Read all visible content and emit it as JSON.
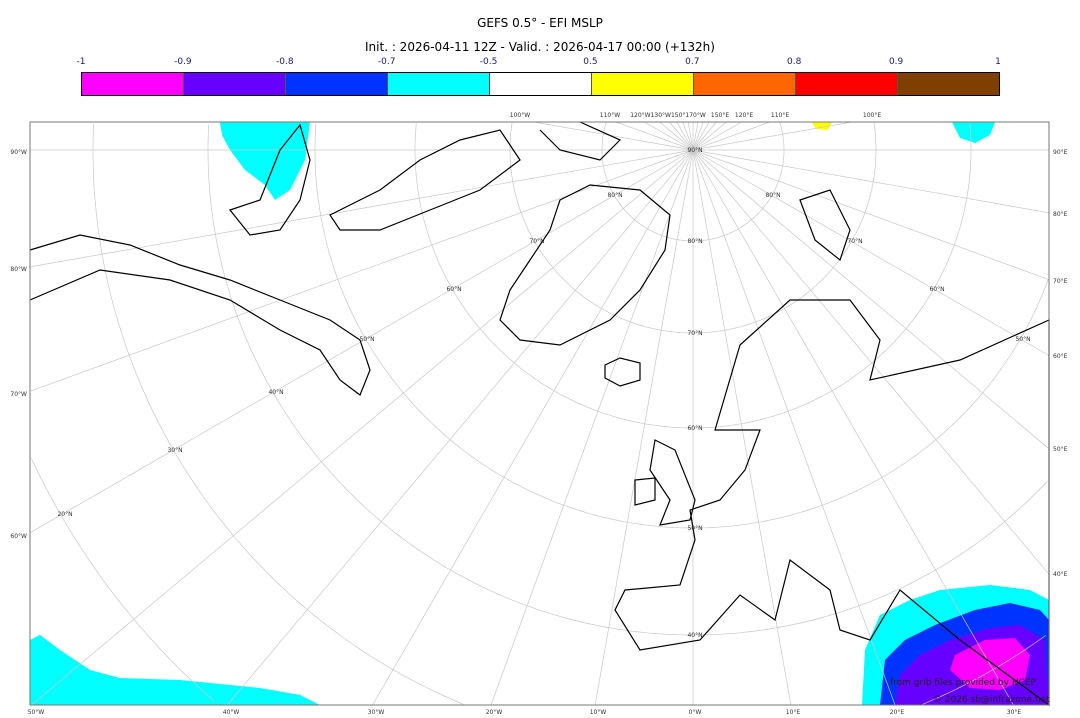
{
  "title": "GEFS 0.5° - EFI MSLP",
  "subtitle": "Init. : 2026-04-11 12Z - Valid. : 2026-04-17 00:00 (+132h)",
  "colorbar": {
    "ticks": [
      "-1",
      "-0.9",
      "-0.8",
      "-0.7",
      "-0.5",
      "0.5",
      "0.7",
      "0.8",
      "0.9",
      "1"
    ],
    "colors": [
      "#ff00ff",
      "#6600ff",
      "#0033ff",
      "#00ffff",
      "#ffffff",
      "#ffff00",
      "#ff6600",
      "#ff0000",
      "#7f3f00"
    ]
  },
  "map": {
    "projection": "polar stereographic",
    "graticule": true,
    "left_labels": [
      "90°W",
      "80°W",
      "70°W",
      "60°W"
    ],
    "right_labels": [
      "90°E",
      "80°E",
      "70°E",
      "60°E",
      "50°E",
      "40°E"
    ],
    "bottom_labels": [
      "50°W",
      "40°W",
      "30°W",
      "20°W",
      "10°W",
      "0°W",
      "10°E",
      "20°E",
      "30°E"
    ],
    "top_labels": [
      "100°W",
      "110°W",
      "120°W130°W150°170°W",
      "150°E",
      "120°E",
      "110°E",
      "100°E"
    ],
    "pole_label": "90°N",
    "lat_labels_left": [
      "80°N",
      "70°N",
      "60°N",
      "50°N",
      "40°N",
      "30°N",
      "20°N"
    ],
    "lat_labels_right": [
      "80°N",
      "70°N",
      "60°N",
      "50°N"
    ],
    "lat_labels_center": [
      "80°N",
      "70°N",
      "60°N",
      "50°N",
      "40°N"
    ]
  },
  "credits": {
    "source": "from grib files provided by NCEP",
    "copyright": "© 2026 sb@infrazone.net"
  }
}
